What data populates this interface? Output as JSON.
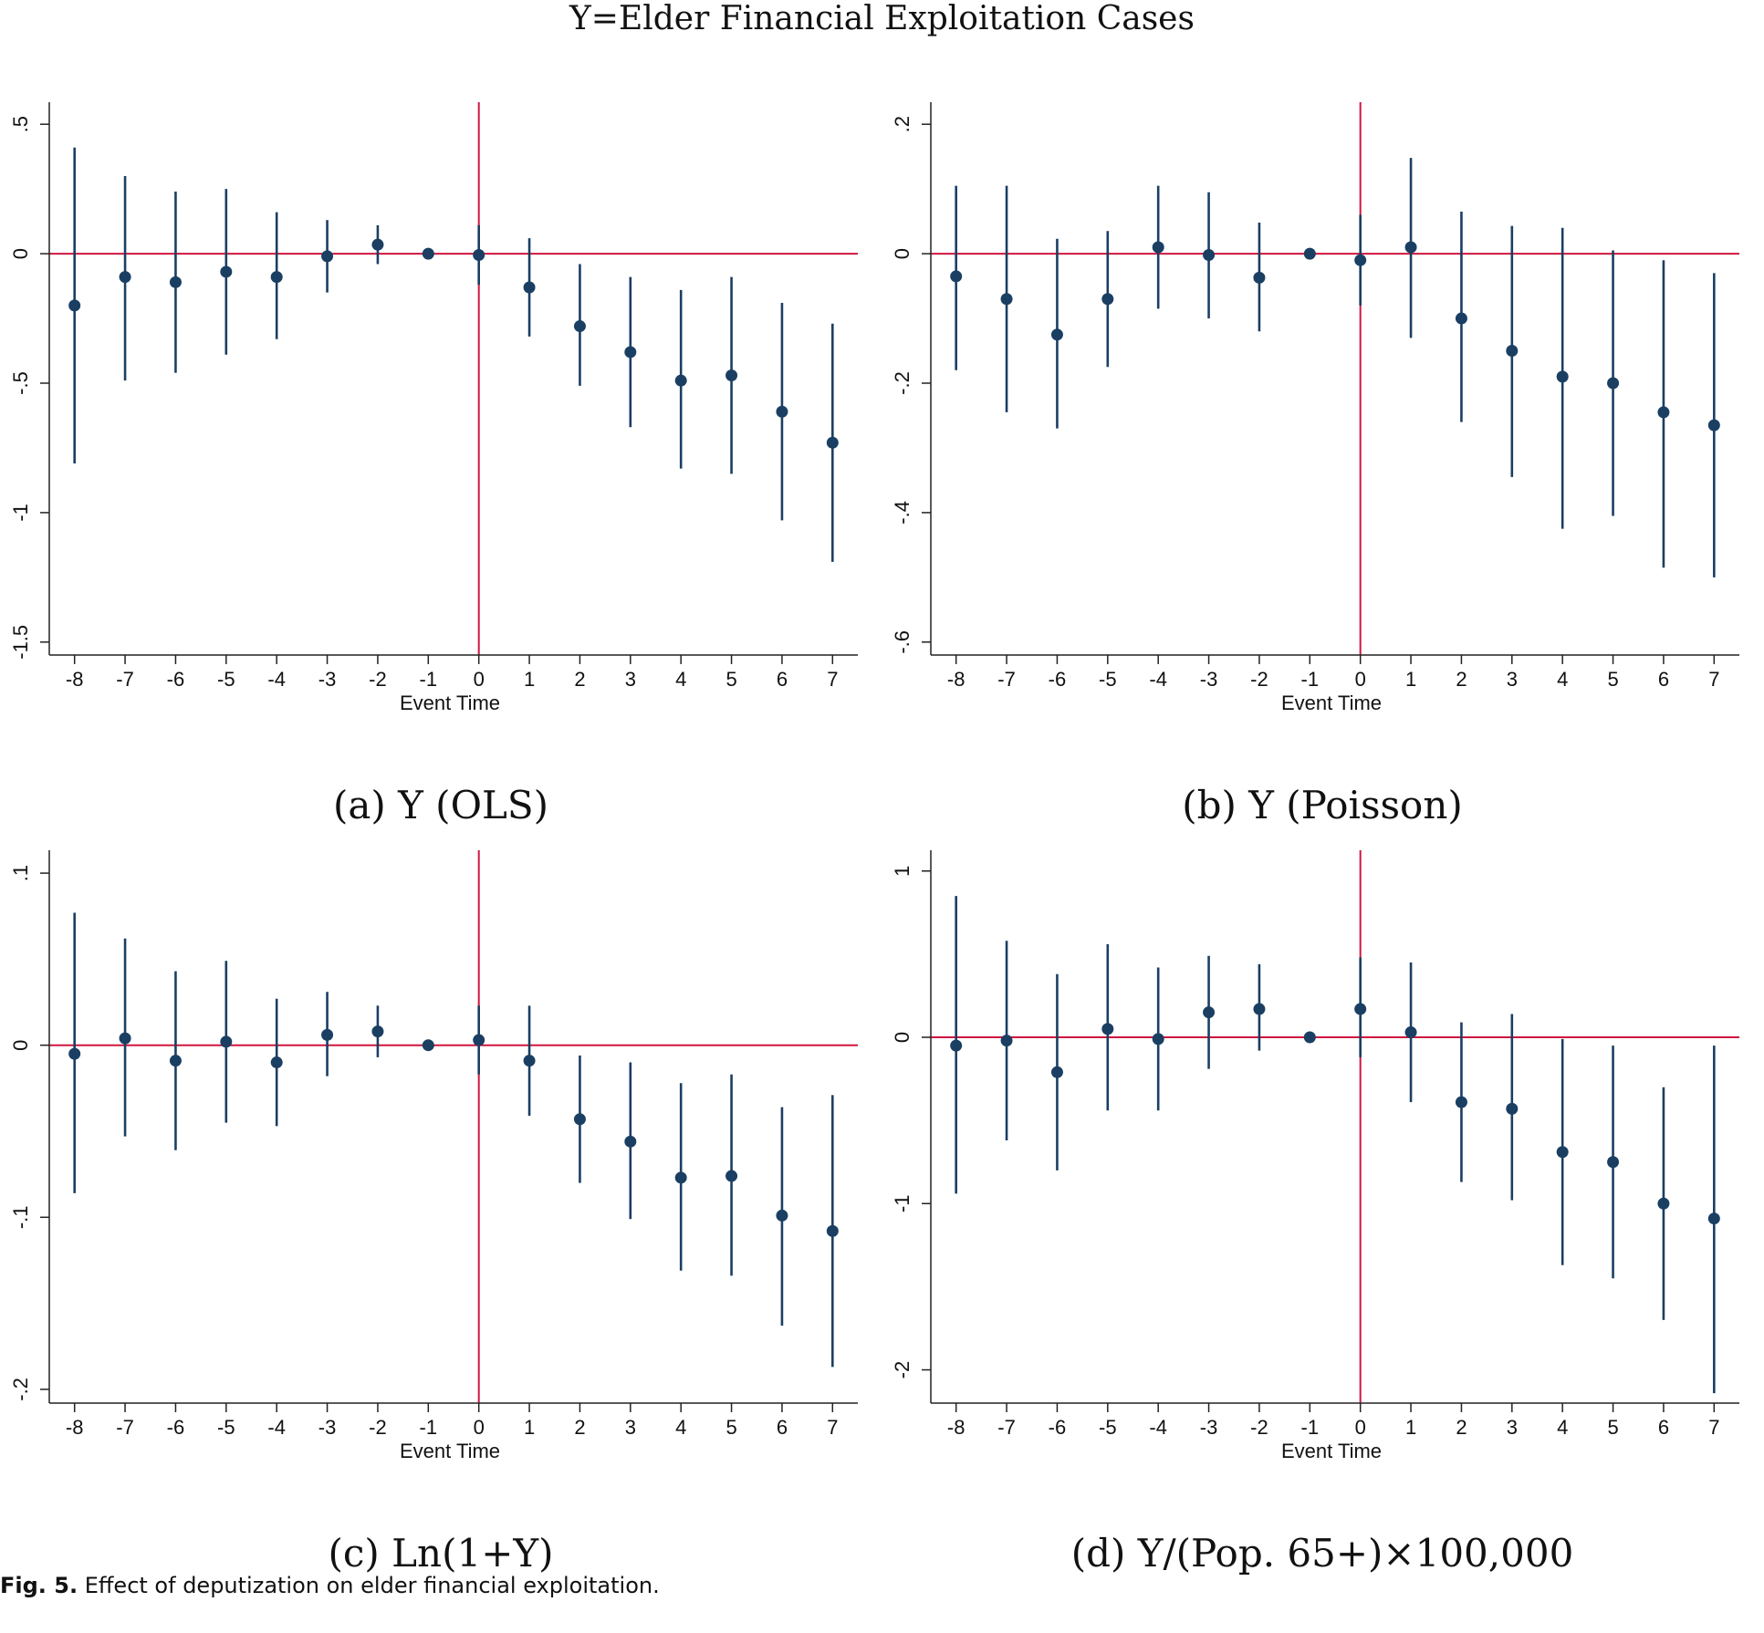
{
  "figure": {
    "title": "Y=Elder Financial Exploitation Cases",
    "caption_label": "Fig. 5.",
    "caption_text": "Effect of deputization on elder financial exploitation."
  },
  "colors": {
    "point": "#1a3f63",
    "ref_line": "#d0163f",
    "axis": "#222222"
  },
  "chart_data": [
    {
      "type": "scatter",
      "panel": "a",
      "caption": "(a) Y (OLS)",
      "xlabel": "Event Time",
      "ylabel": "",
      "x": [
        -8,
        -7,
        -6,
        -5,
        -4,
        -3,
        -2,
        -1,
        0,
        1,
        2,
        3,
        4,
        5,
        6,
        7
      ],
      "y": [
        -0.2,
        -0.09,
        -0.11,
        -0.07,
        -0.09,
        -0.01,
        0.035,
        0.0,
        -0.005,
        -0.13,
        -0.28,
        -0.38,
        -0.49,
        -0.47,
        -0.61,
        -0.73
      ],
      "ci_low": [
        -0.81,
        -0.49,
        -0.46,
        -0.39,
        -0.33,
        -0.15,
        -0.04,
        0.0,
        -0.12,
        -0.32,
        -0.51,
        -0.67,
        -0.83,
        -0.85,
        -1.03,
        -1.19
      ],
      "ci_high": [
        0.41,
        0.3,
        0.24,
        0.25,
        0.16,
        0.13,
        0.11,
        0.0,
        0.11,
        0.06,
        -0.04,
        -0.09,
        -0.14,
        -0.09,
        -0.19,
        -0.27
      ],
      "ylim": [
        -1.55,
        0.55
      ],
      "yticks": [
        0.5,
        0,
        -0.5,
        -1,
        -1.5
      ],
      "ytick_labels": [
        ".5",
        "0",
        "-.5",
        "-1",
        "-1.5"
      ],
      "xticks": [
        -8,
        -7,
        -6,
        -5,
        -4,
        -3,
        -2,
        -1,
        0,
        1,
        2,
        3,
        4,
        5,
        6,
        7
      ],
      "xlim": [
        -8.5,
        7.5
      ],
      "ref_lines": {
        "y": 0,
        "x": 0
      },
      "grid": false
    },
    {
      "type": "scatter",
      "panel": "b",
      "caption": "(b) Y (Poisson)",
      "xlabel": "Event Time",
      "ylabel": "",
      "x": [
        -8,
        -7,
        -6,
        -5,
        -4,
        -3,
        -2,
        -1,
        0,
        1,
        2,
        3,
        4,
        5,
        6,
        7
      ],
      "y": [
        -0.035,
        -0.07,
        -0.125,
        -0.07,
        0.01,
        -0.002,
        -0.037,
        0.0,
        -0.01,
        0.01,
        -0.1,
        -0.15,
        -0.19,
        -0.2,
        -0.245,
        -0.265
      ],
      "ci_low": [
        -0.18,
        -0.245,
        -0.27,
        -0.175,
        -0.085,
        -0.1,
        -0.12,
        0.0,
        -0.08,
        -0.13,
        -0.26,
        -0.345,
        -0.425,
        -0.405,
        -0.485,
        -0.5
      ],
      "ci_high": [
        0.105,
        0.105,
        0.023,
        0.035,
        0.105,
        0.095,
        0.048,
        0.0,
        0.06,
        0.148,
        0.065,
        0.043,
        0.04,
        0.005,
        -0.01,
        -0.03
      ],
      "ylim": [
        -0.62,
        0.22
      ],
      "yticks": [
        0.2,
        0,
        -0.2,
        -0.4,
        -0.6
      ],
      "ytick_labels": [
        ".2",
        "0",
        "-.2",
        "-.4",
        "-.6"
      ],
      "xticks": [
        -8,
        -7,
        -6,
        -5,
        -4,
        -3,
        -2,
        -1,
        0,
        1,
        2,
        3,
        4,
        5,
        6,
        7
      ],
      "xlim": [
        -8.5,
        7.5
      ],
      "ref_lines": {
        "y": 0,
        "x": 0
      },
      "grid": false
    },
    {
      "type": "scatter",
      "panel": "c",
      "caption": "(c) Ln(1+Y)",
      "xlabel": "Event Time",
      "ylabel": "",
      "x": [
        -8,
        -7,
        -6,
        -5,
        -4,
        -3,
        -2,
        -1,
        0,
        1,
        2,
        3,
        4,
        5,
        6,
        7
      ],
      "y": [
        -0.005,
        0.004,
        -0.009,
        0.002,
        -0.01,
        0.006,
        0.008,
        0.0,
        0.003,
        -0.009,
        -0.043,
        -0.056,
        -0.077,
        -0.076,
        -0.099,
        -0.108
      ],
      "ci_low": [
        -0.086,
        -0.053,
        -0.061,
        -0.045,
        -0.047,
        -0.018,
        -0.007,
        0.0,
        -0.017,
        -0.041,
        -0.08,
        -0.101,
        -0.131,
        -0.134,
        -0.163,
        -0.187
      ],
      "ci_high": [
        0.077,
        0.062,
        0.043,
        0.049,
        0.027,
        0.031,
        0.023,
        0.0,
        0.023,
        0.023,
        -0.006,
        -0.01,
        -0.022,
        -0.017,
        -0.036,
        -0.029
      ],
      "ylim": [
        -0.208,
        0.108
      ],
      "yticks": [
        0.1,
        0,
        -0.1,
        -0.2
      ],
      "ytick_labels": [
        ".1",
        "0",
        "-.1",
        "-.2"
      ],
      "xticks": [
        -8,
        -7,
        -6,
        -5,
        -4,
        -3,
        -2,
        -1,
        0,
        1,
        2,
        3,
        4,
        5,
        6,
        7
      ],
      "xlim": [
        -8.5,
        7.5
      ],
      "ref_lines": {
        "y": 0,
        "x": 0
      },
      "grid": false
    },
    {
      "type": "scatter",
      "panel": "d",
      "caption": "(d) Y/(Pop. 65+)×100,000",
      "xlabel": "Event Time",
      "ylabel": "",
      "x": [
        -8,
        -7,
        -6,
        -5,
        -4,
        -3,
        -2,
        -1,
        0,
        1,
        2,
        3,
        4,
        5,
        6,
        7
      ],
      "y": [
        -0.05,
        -0.02,
        -0.21,
        0.05,
        -0.01,
        0.15,
        0.17,
        0.0,
        0.17,
        0.03,
        -0.39,
        -0.43,
        -0.69,
        -0.75,
        -1.0,
        -1.09
      ],
      "ci_low": [
        -0.94,
        -0.62,
        -0.8,
        -0.44,
        -0.44,
        -0.19,
        -0.08,
        0.0,
        -0.12,
        -0.39,
        -0.87,
        -0.98,
        -1.37,
        -1.45,
        -1.7,
        -2.14
      ],
      "ci_high": [
        0.85,
        0.58,
        0.38,
        0.56,
        0.42,
        0.49,
        0.44,
        0.0,
        0.48,
        0.45,
        0.09,
        0.14,
        -0.01,
        -0.05,
        -0.3,
        -0.05
      ],
      "ylim": [
        -2.2,
        1.07
      ],
      "yticks": [
        1,
        0,
        -1,
        -2
      ],
      "ytick_labels": [
        "1",
        "0",
        "-1",
        "-2"
      ],
      "xticks": [
        -8,
        -7,
        -6,
        -5,
        -4,
        -3,
        -2,
        -1,
        0,
        1,
        2,
        3,
        4,
        5,
        6,
        7
      ],
      "xlim": [
        -8.5,
        7.5
      ],
      "ref_lines": {
        "y": 0,
        "x": 0
      },
      "grid": false
    }
  ]
}
